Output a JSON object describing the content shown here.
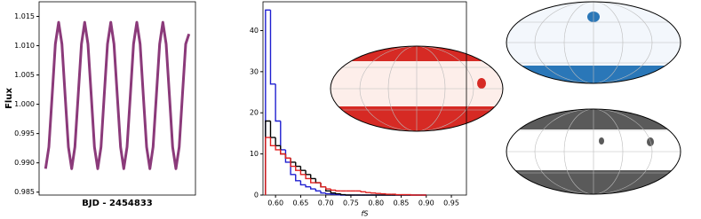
{
  "chart_data": [
    {
      "type": "line",
      "ylabel": "Flux",
      "xlabel": "BJD - 2454833",
      "xlim": [
        0,
        6
      ],
      "ylim": [
        0.9845,
        1.0175
      ],
      "yticks": [
        0.985,
        {
          "value": 0.99,
          "label": "0.990"
        },
        0.995,
        {
          "value": 1.0,
          "label": "1.000"
        },
        1.005,
        {
          "value": 1.01,
          "label": "1.010"
        },
        1.015
      ],
      "x": [
        0.25,
        0.375,
        0.5,
        0.625,
        0.75,
        0.875,
        1,
        1.125,
        1.25,
        1.375,
        1.5,
        1.625,
        1.75,
        1.875,
        2,
        2.125,
        2.25,
        2.375,
        2.5,
        2.625,
        2.75,
        2.875,
        3,
        3.125,
        3.25,
        3.375,
        3.5,
        3.625,
        3.75,
        3.875,
        4,
        4.125,
        4.25,
        4.375,
        4.5,
        4.625,
        4.75,
        4.875,
        5,
        5.125,
        5.25,
        5.375,
        5.5,
        5.625,
        5.75
      ],
      "series": [
        {
          "color": "#8b3a7a",
          "values": [
            0.989,
            0.9927,
            1.0015,
            1.0103,
            1.014,
            1.0103,
            1.0015,
            0.9927,
            0.989,
            0.9927,
            1.0015,
            1.0103,
            1.014,
            1.0103,
            1.0015,
            0.9927,
            0.989,
            0.9927,
            1.0015,
            1.0103,
            1.014,
            1.0103,
            1.0015,
            0.9927,
            0.989,
            0.9927,
            1.0015,
            1.0103,
            1.014,
            1.0103,
            1.0015,
            0.9927,
            0.989,
            0.9927,
            1.0015,
            1.0103,
            1.014,
            1.0103,
            1.0015,
            0.9927,
            0.989,
            0.9927,
            1.0015,
            1.0103,
            1.012
          ]
        }
      ]
    },
    {
      "type": "histogram",
      "xlabel": "fS",
      "xlim": [
        0.575,
        0.98
      ],
      "ylim": [
        0,
        47
      ],
      "xticks": [
        {
          "value": 0.6,
          "label": "0.60"
        },
        0.65,
        {
          "value": 0.7,
          "label": "0.70"
        },
        0.75,
        {
          "value": 0.8,
          "label": "0.80"
        },
        0.85,
        {
          "value": 0.9,
          "label": "0.90"
        },
        0.95
      ],
      "yticks": [
        0,
        10,
        20,
        30,
        40
      ],
      "bins": [
        0.58,
        0.59,
        0.6,
        0.61,
        0.62,
        0.63,
        0.64,
        0.65,
        0.66,
        0.67,
        0.68,
        0.69,
        0.7,
        0.71,
        0.72,
        0.73,
        0.74,
        0.75,
        0.76,
        0.77,
        0.78,
        0.79,
        0.8,
        0.81,
        0.82,
        0.83,
        0.84,
        0.85,
        0.86,
        0.87,
        0.88,
        0.89,
        0.9
      ],
      "series": [
        {
          "color": "#1f1fd0",
          "values": [
            45,
            27,
            18,
            11,
            8,
            5,
            3.5,
            2.5,
            2,
            1.5,
            1,
            0.5,
            0.3,
            0.2,
            0.1,
            0,
            0,
            0,
            0,
            0,
            0,
            0,
            0,
            0,
            0,
            0,
            0,
            0,
            0,
            0,
            0,
            0
          ]
        },
        {
          "color": "#000000",
          "values": [
            18,
            14,
            12,
            10,
            9,
            8,
            7,
            6,
            5,
            4,
            3,
            2,
            1,
            0.5,
            0.3,
            0.1,
            0,
            0,
            0,
            0,
            0,
            0,
            0,
            0,
            0,
            0,
            0,
            0,
            0,
            0,
            0,
            0
          ]
        },
        {
          "color": "#e02020",
          "values": [
            14,
            12,
            11,
            10,
            9,
            7,
            6,
            5,
            4,
            3,
            3,
            2,
            1.5,
            1.2,
            1,
            1,
            1,
            1,
            1,
            0.8,
            0.6,
            0.5,
            0.4,
            0.3,
            0.2,
            0.2,
            0.1,
            0.1,
            0.1,
            0,
            0,
            0
          ]
        }
      ]
    }
  ]
}
